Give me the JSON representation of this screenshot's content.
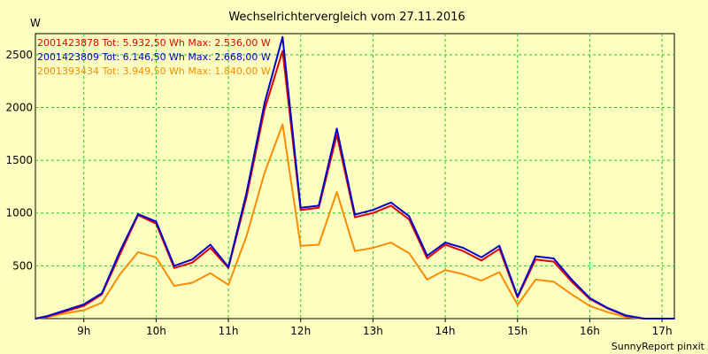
{
  "chart_data": {
    "type": "line",
    "title": "Wechselrichtervergleich vom 27.11.2016",
    "ylabel": "W",
    "xlabel": "",
    "ylim": [
      0,
      2700
    ],
    "xlim": [
      8.33,
      17.17
    ],
    "y_ticks": [
      500,
      1000,
      1500,
      2000,
      2500
    ],
    "y_tick_labels": [
      "500",
      "1000",
      "1500",
      "2000",
      "2500"
    ],
    "x_ticks": [
      9,
      10,
      11,
      12,
      13,
      14,
      15,
      16,
      17
    ],
    "x_tick_labels": [
      "9h",
      "10h",
      "11h",
      "12h",
      "13h",
      "14h",
      "15h",
      "16h",
      "17h"
    ],
    "grid": true,
    "credit": "SunnyReport pinxit",
    "x": [
      8.33,
      8.5,
      8.75,
      9.0,
      9.25,
      9.5,
      9.75,
      10.0,
      10.25,
      10.5,
      10.75,
      11.0,
      11.25,
      11.5,
      11.75,
      12.0,
      12.25,
      12.5,
      12.75,
      13.0,
      13.25,
      13.5,
      13.75,
      14.0,
      14.25,
      14.5,
      14.75,
      15.0,
      15.25,
      15.5,
      15.75,
      16.0,
      16.25,
      16.5,
      16.75,
      17.0,
      17.17
    ],
    "series": [
      {
        "name": "2001423878",
        "legend": "2001423878 Tot: 5.932,50 Wh Max: 2.536,00 W",
        "color": "#e00000",
        "values": [
          0,
          20,
          70,
          120,
          230,
          610,
          980,
          900,
          480,
          530,
          670,
          480,
          1150,
          1980,
          2536,
          1030,
          1050,
          1740,
          960,
          1000,
          1070,
          940,
          570,
          700,
          640,
          550,
          660,
          200,
          560,
          540,
          350,
          185,
          95,
          25,
          0,
          0,
          0
        ]
      },
      {
        "name": "2001423809",
        "legend": "2001423809 Tot: 6.146,50 Wh Max: 2.668,00 W",
        "color": "#0000cc",
        "values": [
          0,
          25,
          80,
          135,
          240,
          640,
          990,
          920,
          500,
          560,
          700,
          490,
          1190,
          2040,
          2668,
          1050,
          1070,
          1800,
          985,
          1030,
          1100,
          970,
          595,
          720,
          670,
          580,
          690,
          210,
          590,
          570,
          370,
          195,
          100,
          30,
          0,
          0,
          0
        ]
      },
      {
        "name": "2001393434",
        "legend": "2001393434 Tot: 3.949,50 Wh Max: 1.840,00 W",
        "color": "#ff8c00",
        "values": [
          0,
          15,
          50,
          80,
          150,
          420,
          630,
          580,
          310,
          340,
          430,
          320,
          780,
          1380,
          1840,
          690,
          700,
          1200,
          640,
          670,
          720,
          620,
          370,
          460,
          420,
          360,
          440,
          130,
          370,
          350,
          230,
          120,
          60,
          15,
          0,
          0,
          0
        ]
      }
    ]
  }
}
